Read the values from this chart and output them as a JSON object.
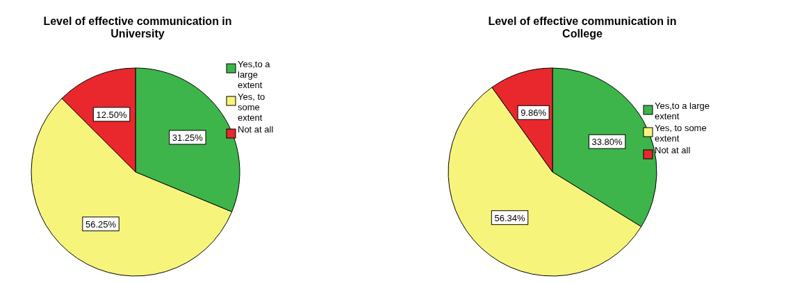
{
  "chart_data": [
    {
      "type": "pie",
      "title": "Level of effective communication in University",
      "categories": [
        "Yes,to a large extent",
        "Yes, to some extent",
        "Not at all"
      ],
      "values": [
        31.25,
        56.25,
        12.5
      ],
      "value_labels": [
        "31.25%",
        "56.25%",
        "12.50%"
      ],
      "colors": [
        "#3db54a",
        "#f7f47c",
        "#e8282d"
      ],
      "legend": "right"
    },
    {
      "type": "pie",
      "title": "Level of effective communication in College",
      "categories": [
        "Yes,to a large extent",
        "Yes, to some extent",
        "Not at all"
      ],
      "values": [
        33.8,
        56.34,
        9.86
      ],
      "value_labels": [
        "33.80%",
        "56.34%",
        "9.86%"
      ],
      "colors": [
        "#3db54a",
        "#f7f47c",
        "#e8282d"
      ],
      "legend": "right"
    }
  ]
}
